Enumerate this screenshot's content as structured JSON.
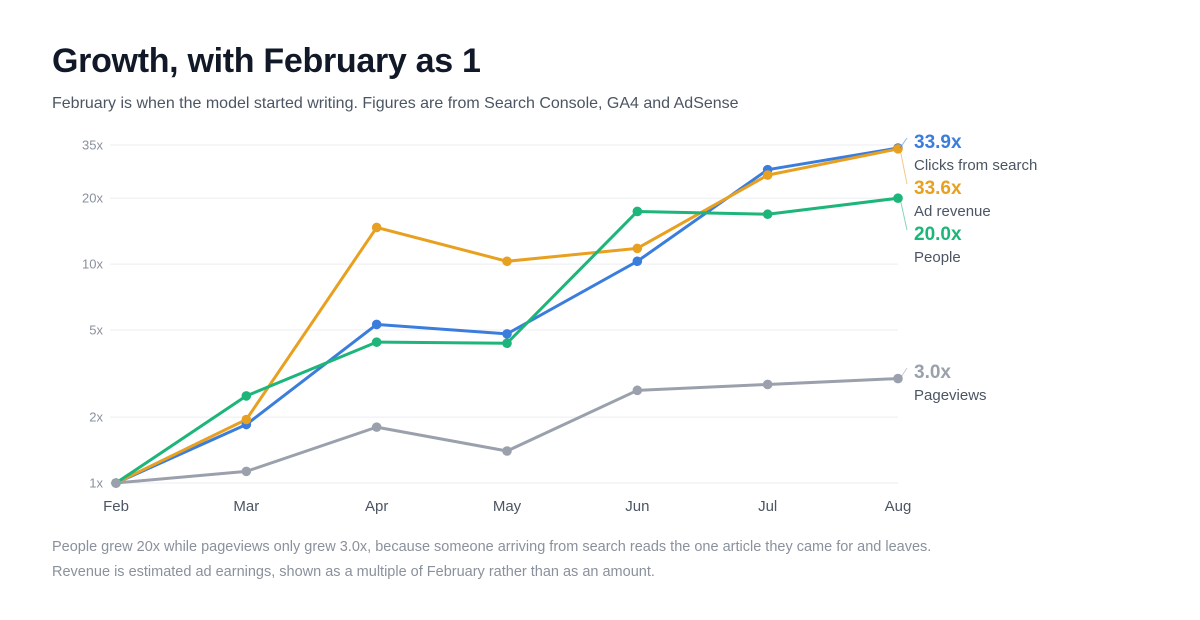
{
  "header": {
    "title": "Growth, with February as 1",
    "subtitle": "February is when the model started writing. Figures are from Search Console, GA4 and AdSense"
  },
  "footnotes": [
    "People grew 20x while pageviews only grew 3.0x, because someone arriving from search reads the one article they came for and leaves.",
    "Revenue is estimated ad earnings, shown as a multiple of February rather than as an amount."
  ],
  "chart_data": {
    "type": "line",
    "categories": [
      "Feb",
      "Mar",
      "Apr",
      "May",
      "Jun",
      "Jul",
      "Aug"
    ],
    "y_scale": "log",
    "ylim": [
      1,
      35
    ],
    "yticks": [
      1,
      2,
      5,
      10,
      20,
      35
    ],
    "ytick_labels": [
      "1x",
      "2x",
      "5x",
      "10x",
      "20x",
      "35x"
    ],
    "grid": true,
    "legend": "end-of-line labels on the right",
    "series": [
      {
        "name": "Clicks from search",
        "end_label": "33.9x",
        "color": "#3b7ddd",
        "values": [
          1.0,
          1.85,
          5.3,
          4.8,
          10.3,
          27.0,
          33.9
        ]
      },
      {
        "name": "Ad revenue",
        "end_label": "33.6x",
        "color": "#e8a020",
        "values": [
          1.0,
          1.95,
          14.7,
          10.3,
          11.8,
          25.5,
          33.6
        ]
      },
      {
        "name": "People",
        "end_label": "20.0x",
        "color": "#1db57a",
        "values": [
          1.0,
          2.5,
          4.4,
          4.35,
          17.4,
          16.9,
          20.0
        ]
      },
      {
        "name": "Pageviews",
        "end_label": "3.0x",
        "color": "#9aa1ad",
        "values": [
          1.0,
          1.13,
          1.8,
          1.4,
          2.65,
          2.82,
          3.0
        ]
      }
    ]
  }
}
